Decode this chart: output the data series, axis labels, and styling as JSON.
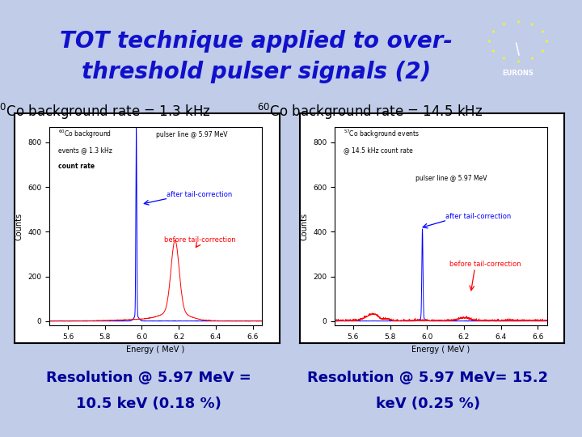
{
  "title_line1": "TOT technique applied to over-",
  "title_line2": "threshold pulser signals (2)",
  "title_color": "#1010CC",
  "title_fontsize": 20,
  "header_bg": "#C8DCF0",
  "mid_bg": "#C0CCE8",
  "bottom_bg": "#E0B8E8",
  "left_label": "$^{60}$Co background rate = 1.3 kHz",
  "right_label": "$^{60}$Co background rate = 14.5 kHz",
  "left_res_line1": "Resolution @ 5.97 MeV =",
  "left_res_line2": "10.5 keV (0.18 %)",
  "right_res_line1": "Resolution @ 5.97 MeV= 15.2",
  "right_res_line2": "keV (0.25 %)",
  "res_color": "#000099",
  "res_fontsize": 13,
  "label_fontsize": 12,
  "xmin": 5.5,
  "xmax": 6.65,
  "ymin": -20,
  "ymax": 870,
  "xticks": [
    5.6,
    5.8,
    6.0,
    6.2,
    6.4,
    6.6
  ]
}
